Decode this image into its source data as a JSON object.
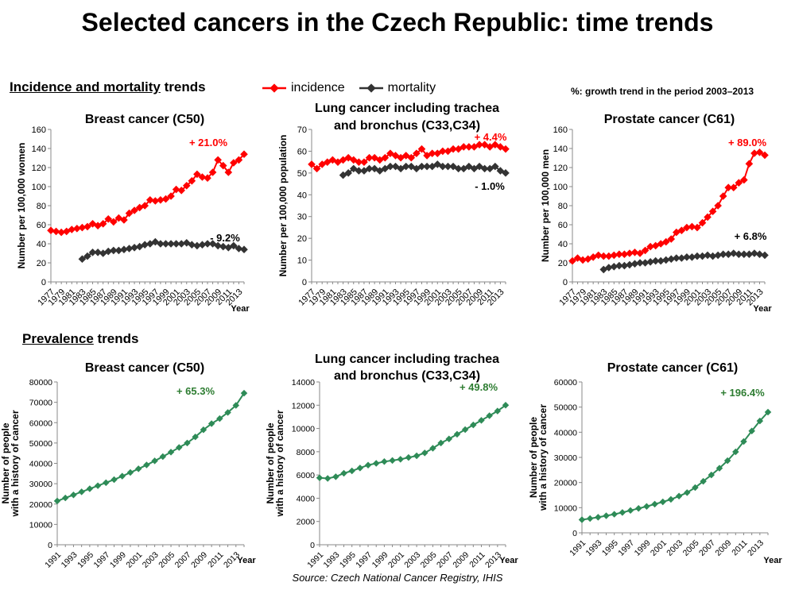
{
  "title": "Selected cancers in the Czech Republic: time trends",
  "section_incidence": {
    "underlined": "Incidence and mortality",
    "rest": " trends"
  },
  "section_prevalence": {
    "underlined": "Prevalence",
    "rest": " trends"
  },
  "legend": {
    "incidence": "incidence",
    "mortality": "mortality"
  },
  "growth_note": "%: growth trend in the period 2003–2013",
  "source": "Source: Czech National Cancer Registry, IHIS",
  "colors": {
    "incidence": "#ff0000",
    "mortality": "#333333",
    "prevalence": "#2e8b57",
    "growth_prevalence": "#2e7d32"
  },
  "chart_data": [
    {
      "type": "line",
      "title": "Breast cancer (C50)",
      "xlabel": "Year",
      "ylabel": "Number per 100,000 women",
      "xlim": [
        1977,
        2014
      ],
      "ylim": [
        0,
        160
      ],
      "yticks": [
        0,
        20,
        40,
        60,
        80,
        100,
        120,
        140,
        160
      ],
      "xticks": [
        1977,
        1979,
        1981,
        1983,
        1985,
        1987,
        1989,
        1991,
        1993,
        1995,
        1997,
        1999,
        2001,
        2003,
        2005,
        2007,
        2009,
        2011,
        2013
      ],
      "series": [
        {
          "name": "incidence",
          "color": "#ff0000",
          "growth_label": "+ 21.0%",
          "x": [
            1977,
            1978,
            1979,
            1980,
            1981,
            1982,
            1983,
            1984,
            1985,
            1986,
            1987,
            1988,
            1989,
            1990,
            1991,
            1992,
            1993,
            1994,
            1995,
            1996,
            1997,
            1998,
            1999,
            2000,
            2001,
            2002,
            2003,
            2004,
            2005,
            2006,
            2007,
            2008,
            2009,
            2010,
            2011,
            2012,
            2013,
            2014
          ],
          "values": [
            54,
            53,
            52,
            53,
            55,
            56,
            57,
            58,
            61,
            59,
            61,
            66,
            63,
            67,
            65,
            72,
            75,
            78,
            80,
            86,
            85,
            86,
            87,
            90,
            97,
            96,
            101,
            106,
            113,
            110,
            109,
            115,
            128,
            122,
            115,
            125,
            128,
            134
          ]
        },
        {
          "name": "mortality",
          "color": "#333333",
          "growth_label": "- 9.2%",
          "x": [
            1983,
            1984,
            1985,
            1986,
            1987,
            1988,
            1989,
            1990,
            1991,
            1992,
            1993,
            1994,
            1995,
            1996,
            1997,
            1998,
            1999,
            2000,
            2001,
            2002,
            2003,
            2004,
            2005,
            2006,
            2007,
            2008,
            2009,
            2010,
            2011,
            2012,
            2013,
            2014
          ],
          "values": [
            24,
            27,
            31,
            31,
            30,
            32,
            33,
            33,
            34,
            35,
            36,
            37,
            39,
            40,
            42,
            40,
            40,
            40,
            40,
            40,
            41,
            39,
            38,
            39,
            40,
            40,
            38,
            37,
            36,
            38,
            35,
            34
          ]
        }
      ]
    },
    {
      "type": "line",
      "title": "Lung cancer including trachea and bronchus (C33,C34)",
      "xlabel": "",
      "ylabel": "Number per 100,000 population",
      "xlim": [
        1977,
        2014
      ],
      "ylim": [
        0,
        70
      ],
      "yticks": [
        0,
        10,
        20,
        30,
        40,
        50,
        60,
        70
      ],
      "xticks": [
        1977,
        1979,
        1981,
        1983,
        1985,
        1987,
        1989,
        1991,
        1993,
        1995,
        1997,
        1999,
        2001,
        2003,
        2005,
        2007,
        2009,
        2011,
        2013
      ],
      "series": [
        {
          "name": "incidence",
          "color": "#ff0000",
          "growth_label": "+ 4.4%",
          "x": [
            1977,
            1978,
            1979,
            1980,
            1981,
            1982,
            1983,
            1984,
            1985,
            1986,
            1987,
            1988,
            1989,
            1990,
            1991,
            1992,
            1993,
            1994,
            1995,
            1996,
            1997,
            1998,
            1999,
            2000,
            2001,
            2002,
            2003,
            2004,
            2005,
            2006,
            2007,
            2008,
            2009,
            2010,
            2011,
            2012,
            2013,
            2014
          ],
          "values": [
            54,
            52,
            54,
            55,
            56,
            55,
            56,
            57,
            56,
            55,
            55,
            57,
            57,
            56,
            57,
            59,
            58,
            57,
            58,
            57,
            59,
            61,
            58,
            59,
            59,
            60,
            60,
            61,
            61,
            62,
            62,
            62,
            63,
            63,
            62,
            63,
            62,
            61
          ]
        },
        {
          "name": "mortality",
          "color": "#333333",
          "growth_label": "- 1.0%",
          "x": [
            1983,
            1984,
            1985,
            1986,
            1987,
            1988,
            1989,
            1990,
            1991,
            1992,
            1993,
            1994,
            1995,
            1996,
            1997,
            1998,
            1999,
            2000,
            2001,
            2002,
            2003,
            2004,
            2005,
            2006,
            2007,
            2008,
            2009,
            2010,
            2011,
            2012,
            2013,
            2014
          ],
          "values": [
            49,
            50,
            52,
            51,
            51,
            52,
            52,
            51,
            52,
            53,
            53,
            52,
            53,
            53,
            52,
            53,
            53,
            53,
            54,
            53,
            53,
            53,
            52,
            52,
            53,
            52,
            53,
            52,
            52,
            53,
            51,
            50
          ]
        }
      ]
    },
    {
      "type": "line",
      "title": "Prostate cancer (C61)",
      "xlabel": "Year",
      "ylabel": "Number per 100,000 men",
      "xlim": [
        1977,
        2014
      ],
      "ylim": [
        0,
        160
      ],
      "yticks": [
        0,
        20,
        40,
        60,
        80,
        100,
        120,
        140,
        160
      ],
      "xticks": [
        1977,
        1979,
        1981,
        1983,
        1985,
        1987,
        1989,
        1991,
        1993,
        1995,
        1997,
        1999,
        2001,
        2003,
        2005,
        2007,
        2009,
        2011,
        2013
      ],
      "series": [
        {
          "name": "incidence",
          "color": "#ff0000",
          "growth_label": "+ 89.0%",
          "x": [
            1977,
            1978,
            1979,
            1980,
            1981,
            1982,
            1983,
            1984,
            1985,
            1986,
            1987,
            1988,
            1989,
            1990,
            1991,
            1992,
            1993,
            1994,
            1995,
            1996,
            1997,
            1998,
            1999,
            2000,
            2001,
            2002,
            2003,
            2004,
            2005,
            2006,
            2007,
            2008,
            2009,
            2010,
            2011,
            2012,
            2013,
            2014
          ],
          "values": [
            22,
            25,
            23,
            24,
            26,
            28,
            27,
            27,
            28,
            29,
            29,
            30,
            31,
            30,
            33,
            37,
            38,
            40,
            42,
            45,
            52,
            54,
            57,
            58,
            57,
            62,
            68,
            74,
            80,
            90,
            99,
            99,
            104,
            107,
            124,
            135,
            136,
            133
          ]
        },
        {
          "name": "mortality",
          "color": "#333333",
          "growth_label": "+ 6.8%",
          "x": [
            1983,
            1984,
            1985,
            1986,
            1987,
            1988,
            1989,
            1990,
            1991,
            1992,
            1993,
            1994,
            1995,
            1996,
            1997,
            1998,
            1999,
            2000,
            2001,
            2002,
            2003,
            2004,
            2005,
            2006,
            2007,
            2008,
            2009,
            2010,
            2011,
            2012,
            2013,
            2014
          ],
          "values": [
            13,
            15,
            16,
            17,
            17,
            18,
            19,
            20,
            20,
            21,
            22,
            22,
            23,
            24,
            25,
            25,
            26,
            26,
            27,
            27,
            28,
            27,
            28,
            29,
            29,
            30,
            29,
            29,
            29,
            30,
            29,
            28
          ]
        }
      ]
    },
    {
      "type": "line",
      "title": "Breast cancer (C50)",
      "xlabel": "Year",
      "ylabel": "Number of people with a history of cancer",
      "xlim": [
        1991,
        2014
      ],
      "ylim": [
        0,
        80000
      ],
      "yticks": [
        0,
        10000,
        20000,
        30000,
        40000,
        50000,
        60000,
        70000,
        80000
      ],
      "xticks": [
        1991,
        1993,
        1995,
        1997,
        1999,
        2001,
        2003,
        2005,
        2007,
        2009,
        2011,
        2013
      ],
      "series": [
        {
          "name": "",
          "color": "#2e8b57",
          "growth_label": "+ 65.3%",
          "x": [
            1991,
            1992,
            1993,
            1994,
            1995,
            1996,
            1997,
            1998,
            1999,
            2000,
            2001,
            2002,
            2003,
            2004,
            2005,
            2006,
            2007,
            2008,
            2009,
            2010,
            2011,
            2012,
            2013,
            2014
          ],
          "values": [
            21500,
            23000,
            24500,
            26000,
            27500,
            29000,
            30500,
            32000,
            33700,
            35500,
            37300,
            39200,
            41200,
            43300,
            45500,
            47800,
            50000,
            53000,
            56500,
            59500,
            62000,
            65000,
            68500,
            74500
          ]
        }
      ]
    },
    {
      "type": "line",
      "title": "Lung cancer including trachea and bronchus (C33,C34)",
      "xlabel": "Year",
      "ylabel": "Number of people with a history of cancer",
      "xlim": [
        1991,
        2014
      ],
      "ylim": [
        0,
        14000
      ],
      "yticks": [
        0,
        2000,
        4000,
        6000,
        8000,
        10000,
        12000,
        14000
      ],
      "xticks": [
        1991,
        1993,
        1995,
        1997,
        1999,
        2001,
        2003,
        2005,
        2007,
        2009,
        2011,
        2013
      ],
      "series": [
        {
          "name": "",
          "color": "#2e8b57",
          "growth_label": "+ 49.8%",
          "x": [
            1991,
            1992,
            1993,
            1994,
            1995,
            1996,
            1997,
            1998,
            1999,
            2000,
            2001,
            2002,
            2003,
            2004,
            2005,
            2006,
            2007,
            2008,
            2009,
            2010,
            2011,
            2012,
            2013,
            2014
          ],
          "values": [
            5750,
            5700,
            5850,
            6150,
            6350,
            6600,
            6850,
            7000,
            7150,
            7250,
            7350,
            7500,
            7650,
            7900,
            8300,
            8750,
            9100,
            9500,
            9900,
            10300,
            10700,
            11100,
            11500,
            12000
          ]
        }
      ]
    },
    {
      "type": "line",
      "title": "Prostate cancer (C61)",
      "xlabel": "Year",
      "ylabel": "Number of people with a history of cancer",
      "xlim": [
        1991,
        2014
      ],
      "ylim": [
        0,
        60000
      ],
      "yticks": [
        0,
        10000,
        20000,
        30000,
        40000,
        50000,
        60000
      ],
      "xticks": [
        1991,
        1993,
        1995,
        1997,
        1999,
        2001,
        2003,
        2005,
        2007,
        2009,
        2011,
        2013
      ],
      "series": [
        {
          "name": "",
          "color": "#2e8b57",
          "growth_label": "+ 196.4%",
          "x": [
            1991,
            1992,
            1993,
            1994,
            1995,
            1996,
            1997,
            1998,
            1999,
            2000,
            2001,
            2002,
            2003,
            2004,
            2005,
            2006,
            2007,
            2008,
            2009,
            2010,
            2011,
            2012,
            2013,
            2014
          ],
          "values": [
            5200,
            5700,
            6200,
            6800,
            7400,
            8100,
            8900,
            9700,
            10500,
            11400,
            12300,
            13300,
            14600,
            16000,
            18000,
            20500,
            23000,
            25700,
            28700,
            32200,
            36300,
            40500,
            44500,
            48000
          ]
        }
      ]
    }
  ]
}
